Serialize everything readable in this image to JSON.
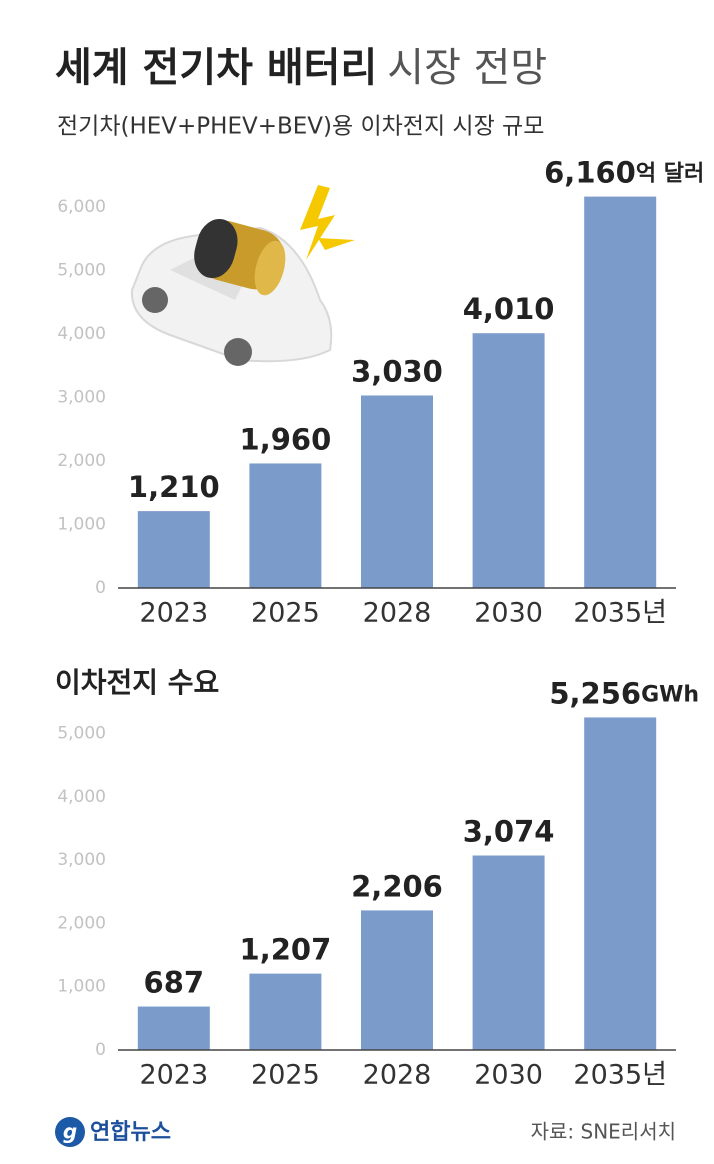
{
  "header": {
    "title_bold": "세계 전기차 배터리",
    "title_light": "시장 전망",
    "subtitle": "전기차(HEV+PHEV+BEV)용 이차전지 시장 규모"
  },
  "chart_data": [
    {
      "type": "bar",
      "categories": [
        "2023",
        "2025",
        "2028",
        "2030",
        "2035년"
      ],
      "values": [
        1210,
        1960,
        3030,
        4010,
        6160
      ],
      "value_labels": [
        "1,210",
        "1,960",
        "3,030",
        "4,010",
        "6,160"
      ],
      "unit": "억 달러",
      "color": "#7b9bca",
      "ylim": [
        0,
        6500
      ],
      "yticks": [
        0,
        {
          "value": 1000,
          "label": "1,000"
        },
        {
          "value": 2000,
          "label": "2,000"
        },
        {
          "value": 3000,
          "label": "3,000"
        },
        {
          "value": 4000,
          "label": "4,000"
        },
        {
          "value": 5000,
          "label": "5,000"
        },
        {
          "value": 6000,
          "label": "6,000"
        }
      ],
      "grid": false
    },
    {
      "type": "bar",
      "title": "이차전지 수요",
      "categories": [
        "2023",
        "2025",
        "2028",
        "2030",
        "2035년"
      ],
      "values": [
        687,
        1207,
        2206,
        3074,
        5256
      ],
      "value_labels": [
        "687",
        "1,207",
        "2,206",
        "3,074",
        "5,256"
      ],
      "unit": "GWh",
      "color": "#7b9bca",
      "ylim": [
        0,
        5500
      ],
      "yticks": [
        0,
        {
          "value": 1000,
          "label": "1,000"
        },
        {
          "value": 2000,
          "label": "2,000"
        },
        {
          "value": 3000,
          "label": "3,000"
        },
        {
          "value": 4000,
          "label": "4,000"
        },
        {
          "value": 5000,
          "label": "5,000"
        }
      ],
      "grid": false
    }
  ],
  "footer": {
    "logo": "연합뉴스",
    "source": "자료: SNE리서치"
  }
}
